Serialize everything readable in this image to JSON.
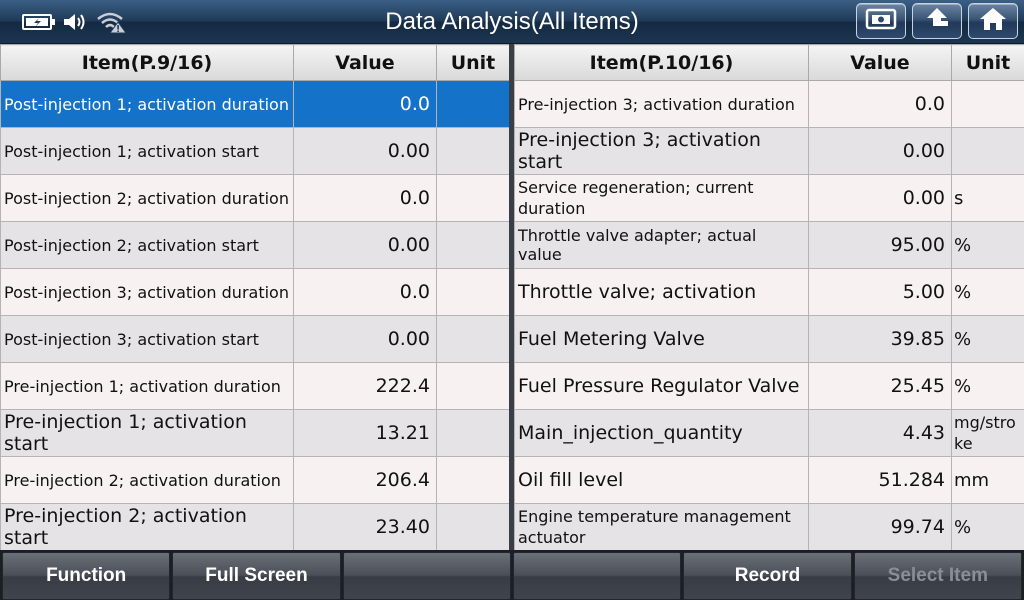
{
  "header": {
    "title": "Data Analysis(All Items)"
  },
  "status_icons": [
    "battery-charging-icon",
    "speaker-icon",
    "wifi-warning-icon"
  ],
  "nav_icons": [
    "screenshot-icon",
    "back-icon",
    "home-icon"
  ],
  "left_table": {
    "col_item": "Item(P.9/16)",
    "col_value": "Value",
    "col_unit": "Unit",
    "rows": [
      {
        "item": "Post-injection 1; activation duration",
        "value": "0.0",
        "unit": ""
      },
      {
        "item": "Post-injection 1; activation start",
        "value": "0.00",
        "unit": ""
      },
      {
        "item": "Post-injection 2; activation duration",
        "value": "0.0",
        "unit": ""
      },
      {
        "item": "Post-injection 2; activation start",
        "value": "0.00",
        "unit": ""
      },
      {
        "item": "Post-injection 3; activation duration",
        "value": "0.0",
        "unit": ""
      },
      {
        "item": "Post-injection 3; activation start",
        "value": "0.00",
        "unit": ""
      },
      {
        "item": "Pre-injection 1; activation duration",
        "value": "222.4",
        "unit": ""
      },
      {
        "item": "Pre-injection 1; activation start",
        "value": "13.21",
        "unit": ""
      },
      {
        "item": "Pre-injection 2; activation duration",
        "value": "206.4",
        "unit": ""
      },
      {
        "item": "Pre-injection 2; activation start",
        "value": "23.40",
        "unit": ""
      }
    ]
  },
  "right_table": {
    "col_item": "Item(P.10/16)",
    "col_value": "Value",
    "col_unit": "Unit",
    "rows": [
      {
        "item": "Pre-injection 3; activation duration",
        "value": "0.0",
        "unit": ""
      },
      {
        "item": "Pre-injection 3; activation start",
        "value": "0.00",
        "unit": ""
      },
      {
        "item": "Service regeneration; current duration",
        "value": "0.00",
        "unit": "s"
      },
      {
        "item": "Throttle valve adapter; actual value",
        "value": "95.00",
        "unit": "%"
      },
      {
        "item": "Throttle valve; activation",
        "value": "5.00",
        "unit": "%"
      },
      {
        "item": "Fuel Metering Valve",
        "value": "39.85",
        "unit": "%"
      },
      {
        "item": "Fuel Pressure Regulator Valve",
        "value": "25.45",
        "unit": "%"
      },
      {
        "item": "Main_injection_quantity",
        "value": "4.43",
        "unit": "mg/stroke"
      },
      {
        "item": "Oil fill level",
        "value": "51.284",
        "unit": "mm"
      },
      {
        "item": "Engine temperature management actuator",
        "value": "99.74",
        "unit": "%"
      }
    ]
  },
  "bottom_bar": {
    "function_label": "Function",
    "fullscreen_label": "Full Screen",
    "empty1_label": "",
    "empty2_label": "",
    "record_label": "Record",
    "select_item_label": "Select Item"
  },
  "colors": {
    "selected_row": "#1472c8",
    "topbar": "#203a57"
  }
}
